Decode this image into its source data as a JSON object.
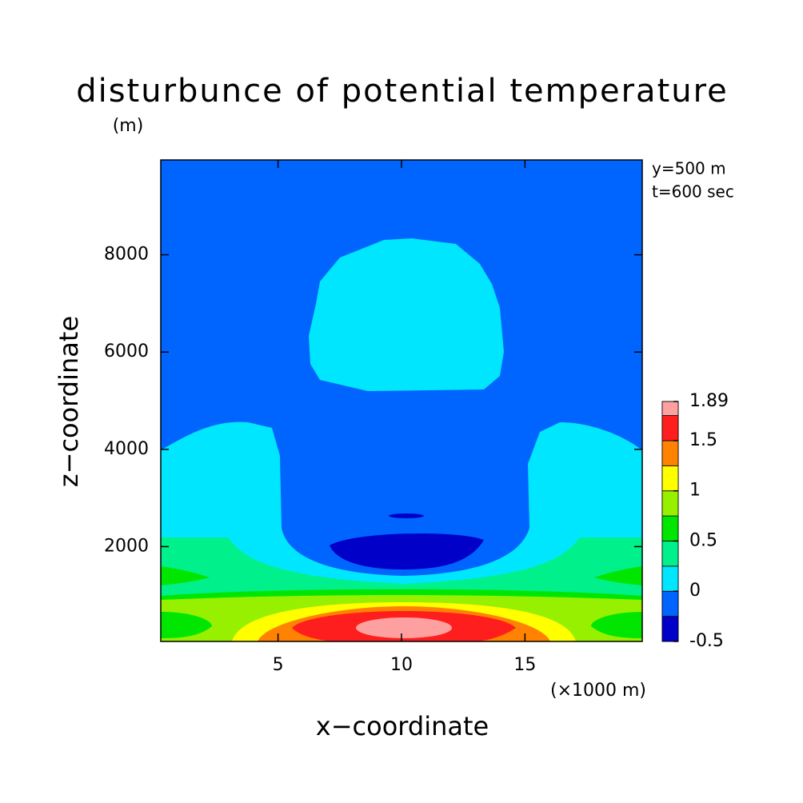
{
  "chart_data": {
    "type": "contour",
    "title": "disturbunce of potential temperature",
    "y_unit": "(m)",
    "x_unit": "(×1000 m)",
    "xlabel": "x−coordinate",
    "ylabel": "z−coordinate",
    "annotations": [
      "y=500 m",
      "t=600 sec"
    ],
    "xlim": [
      0.25,
      19.75
    ],
    "xticks": [
      5,
      10,
      15
    ],
    "ylim": [
      50,
      9950
    ],
    "yticks": [
      2000,
      4000,
      6000,
      8000
    ],
    "levels": [
      -0.5,
      -0.25,
      0,
      0.25,
      0.5,
      0.75,
      1,
      1.25,
      1.5,
      1.75,
      1.89
    ],
    "colors": [
      "#0000c8",
      "#0064ff",
      "#00e6ff",
      "#00f08c",
      "#00e600",
      "#96f000",
      "#ffff00",
      "#ff8200",
      "#ff1e1e",
      "#ffa0a0"
    ],
    "colorbar_ticks": [
      -0.5,
      0,
      0.5,
      1,
      1.5,
      1.89
    ]
  }
}
